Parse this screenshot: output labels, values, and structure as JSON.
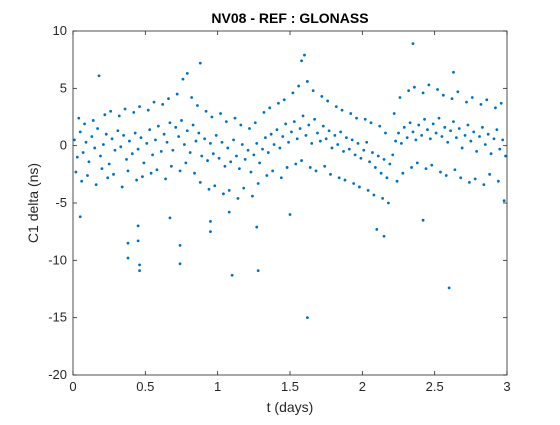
{
  "chart_data": {
    "type": "scatter",
    "title": "NV08 - REF : GLONASS",
    "xlabel": "t (days)",
    "ylabel": "C1 delta (ns)",
    "xlim": [
      0,
      3
    ],
    "ylim": [
      -20,
      10
    ],
    "xticks": [
      0,
      0.5,
      1,
      1.5,
      2,
      2.5,
      3
    ],
    "xtick_labels": [
      "0",
      "0.5",
      "1",
      "1.5",
      "2",
      "2.5",
      "3"
    ],
    "yticks": [
      -20,
      -15,
      -10,
      -5,
      0,
      5,
      10
    ],
    "ytick_labels": [
      "-20",
      "-15",
      "-10",
      "-5",
      "0",
      "5",
      "10"
    ],
    "grid": false,
    "marker_color": "#0072BD",
    "series": [
      {
        "points": [
          [
            0.01,
            0.5
          ],
          [
            0.03,
            -1.0
          ],
          [
            0.05,
            1.2
          ],
          [
            0.07,
            -0.6
          ],
          [
            0.09,
            0.3
          ],
          [
            0.11,
            -1.4
          ],
          [
            0.13,
            0.8
          ],
          [
            0.15,
            -0.2
          ],
          [
            0.17,
            1.5
          ],
          [
            0.19,
            -0.9
          ],
          [
            0.21,
            0.1
          ],
          [
            0.23,
            1.0
          ],
          [
            0.25,
            -1.6
          ],
          [
            0.27,
            0.6
          ],
          [
            0.29,
            -0.4
          ],
          [
            0.31,
            1.3
          ],
          [
            0.33,
            -0.1
          ],
          [
            0.35,
            0.9
          ],
          [
            0.37,
            -1.2
          ],
          [
            0.39,
            0.4
          ],
          [
            0.41,
            -0.7
          ],
          [
            0.43,
            1.1
          ],
          [
            0.45,
            -0.3
          ],
          [
            0.47,
            0.7
          ],
          [
            0.49,
            -1.5
          ],
          [
            0.51,
            0.2
          ],
          [
            0.53,
            1.4
          ],
          [
            0.55,
            -0.8
          ],
          [
            0.57,
            0.5
          ],
          [
            0.59,
            1.7
          ],
          [
            0.61,
            -0.5
          ],
          [
            0.63,
            1.0
          ],
          [
            0.65,
            0.3
          ],
          [
            0.67,
            2.0
          ],
          [
            0.69,
            -0.4
          ],
          [
            0.71,
            1.6
          ],
          [
            0.73,
            0.8
          ],
          [
            0.75,
            2.2
          ],
          [
            0.77,
            0.1
          ],
          [
            0.79,
            1.3
          ],
          [
            0.81,
            -0.6
          ],
          [
            0.83,
            1.8
          ],
          [
            0.85,
            0.4
          ],
          [
            0.87,
            1.1
          ],
          [
            0.89,
            -0.9
          ],
          [
            0.91,
            0.6
          ],
          [
            0.93,
            -1.3
          ],
          [
            0.95,
            0.2
          ],
          [
            0.97,
            -0.7
          ],
          [
            0.99,
            0.9
          ],
          [
            1.01,
            -1.1
          ],
          [
            1.03,
            0.3
          ],
          [
            1.05,
            -1.8
          ],
          [
            1.07,
            -0.2
          ],
          [
            1.09,
            -1.4
          ],
          [
            1.11,
            0.5
          ],
          [
            1.13,
            -0.9
          ],
          [
            1.15,
            -2.0
          ],
          [
            1.17,
            0.1
          ],
          [
            1.19,
            -1.2
          ],
          [
            1.21,
            -0.4
          ],
          [
            1.23,
            -2.3
          ],
          [
            1.25,
            -0.8
          ],
          [
            1.27,
            0.2
          ],
          [
            1.29,
            -1.5
          ],
          [
            1.31,
            -0.3
          ],
          [
            1.33,
            0.7
          ],
          [
            1.35,
            -0.6
          ],
          [
            1.37,
            1.0
          ],
          [
            1.39,
            0.1
          ],
          [
            1.41,
            1.4
          ],
          [
            1.43,
            -0.2
          ],
          [
            1.45,
            0.8
          ],
          [
            1.47,
            1.9
          ],
          [
            1.49,
            0.3
          ],
          [
            1.51,
            1.2
          ],
          [
            1.53,
            2.1
          ],
          [
            1.55,
            0.6
          ],
          [
            1.57,
            1.5
          ],
          [
            1.59,
            2.6
          ],
          [
            1.61,
            0.9
          ],
          [
            1.63,
            1.8
          ],
          [
            1.65,
            0.2
          ],
          [
            1.67,
            2.3
          ],
          [
            1.69,
            1.1
          ],
          [
            1.71,
            0.4
          ],
          [
            1.73,
            1.7
          ],
          [
            1.75,
            0.6
          ],
          [
            1.77,
            1.3
          ],
          [
            1.79,
            -0.2
          ],
          [
            1.81,
            0.9
          ],
          [
            1.83,
            0.1
          ],
          [
            1.85,
            1.2
          ],
          [
            1.87,
            -0.5
          ],
          [
            1.89,
            0.7
          ],
          [
            1.91,
            -0.3
          ],
          [
            1.93,
            0.5
          ],
          [
            1.95,
            -0.8
          ],
          [
            1.97,
            0.2
          ],
          [
            1.99,
            -1.1
          ],
          [
            2.01,
            -0.4
          ],
          [
            2.03,
            0.3
          ],
          [
            2.05,
            -1.4
          ],
          [
            2.07,
            -0.6
          ],
          [
            2.09,
            -1.9
          ],
          [
            2.11,
            -0.9
          ],
          [
            2.13,
            -2.4
          ],
          [
            2.15,
            -1.2
          ],
          [
            2.17,
            -2.8
          ],
          [
            2.19,
            -1.6
          ],
          [
            2.21,
            -0.8
          ],
          [
            2.23,
            0.4
          ],
          [
            2.25,
            1.1
          ],
          [
            2.27,
            0.2
          ],
          [
            2.29,
            1.6
          ],
          [
            2.31,
            0.7
          ],
          [
            2.33,
            2.0
          ],
          [
            2.35,
            1.2
          ],
          [
            2.37,
            0.5
          ],
          [
            2.39,
            1.8
          ],
          [
            2.41,
            0.9
          ],
          [
            2.43,
            2.3
          ],
          [
            2.45,
            1.4
          ],
          [
            2.47,
            0.6
          ],
          [
            2.49,
            1.9
          ],
          [
            2.51,
            1.1
          ],
          [
            2.53,
            2.4
          ],
          [
            2.55,
            0.8
          ],
          [
            2.57,
            1.6
          ],
          [
            2.59,
            0.3
          ],
          [
            2.61,
            1.3
          ],
          [
            2.63,
            2.1
          ],
          [
            2.65,
            0.7
          ],
          [
            2.67,
            1.5
          ],
          [
            2.69,
            -0.2
          ],
          [
            2.71,
            0.9
          ],
          [
            2.73,
            1.8
          ],
          [
            2.75,
            0.4
          ],
          [
            2.77,
            1.2
          ],
          [
            2.79,
            -0.5
          ],
          [
            2.81,
            0.8
          ],
          [
            2.83,
            1.6
          ],
          [
            2.85,
            0.1
          ],
          [
            2.87,
            1.0
          ],
          [
            2.89,
            -0.7
          ],
          [
            2.91,
            0.6
          ],
          [
            2.93,
            1.4
          ],
          [
            2.95,
            -0.3
          ],
          [
            2.97,
            0.5
          ],
          [
            2.99,
            -0.9
          ],
          [
            0.02,
            -2.3
          ],
          [
            0.04,
            2.4
          ],
          [
            0.06,
            -3.1
          ],
          [
            0.08,
            1.9
          ],
          [
            0.1,
            -2.6
          ],
          [
            0.14,
            2.2
          ],
          [
            0.16,
            -3.4
          ],
          [
            0.18,
            6.1
          ],
          [
            0.2,
            -2.0
          ],
          [
            0.22,
            2.7
          ],
          [
            0.24,
            -2.8
          ],
          [
            0.26,
            3.0
          ],
          [
            0.28,
            -2.5
          ],
          [
            0.32,
            2.6
          ],
          [
            0.34,
            -3.6
          ],
          [
            0.36,
            3.2
          ],
          [
            0.38,
            -2.2
          ],
          [
            0.42,
            2.9
          ],
          [
            0.44,
            -3.0
          ],
          [
            0.46,
            3.4
          ],
          [
            0.48,
            -2.7
          ],
          [
            0.52,
            3.1
          ],
          [
            0.54,
            -2.4
          ],
          [
            0.56,
            3.8
          ],
          [
            0.58,
            -2.1
          ],
          [
            0.62,
            3.6
          ],
          [
            0.64,
            -2.9
          ],
          [
            0.66,
            4.1
          ],
          [
            0.68,
            -1.8
          ],
          [
            0.72,
            4.5
          ],
          [
            0.74,
            -2.2
          ],
          [
            0.76,
            5.8
          ],
          [
            0.78,
            -1.5
          ],
          [
            0.82,
            4.2
          ],
          [
            0.84,
            -2.4
          ],
          [
            0.86,
            3.5
          ],
          [
            0.88,
            -3.2
          ],
          [
            0.92,
            3.0
          ],
          [
            0.94,
            -3.8
          ],
          [
            0.96,
            2.5
          ],
          [
            0.98,
            -3.5
          ],
          [
            1.02,
            2.8
          ],
          [
            1.04,
            -4.2
          ],
          [
            1.06,
            2.1
          ],
          [
            1.08,
            -3.9
          ],
          [
            1.12,
            2.4
          ],
          [
            1.14,
            -4.6
          ],
          [
            1.16,
            1.8
          ],
          [
            1.18,
            -3.7
          ],
          [
            1.22,
            1.5
          ],
          [
            1.24,
            -4.4
          ],
          [
            1.26,
            2.0
          ],
          [
            1.28,
            -3.3
          ],
          [
            1.32,
            2.9
          ],
          [
            1.34,
            -2.6
          ],
          [
            1.36,
            3.3
          ],
          [
            1.38,
            -2.2
          ],
          [
            1.42,
            3.7
          ],
          [
            1.44,
            -2.8
          ],
          [
            1.46,
            4.0
          ],
          [
            1.48,
            -1.9
          ],
          [
            1.52,
            4.6
          ],
          [
            1.54,
            -1.6
          ],
          [
            1.56,
            5.2
          ],
          [
            1.58,
            -1.3
          ],
          [
            1.62,
            5.6
          ],
          [
            1.64,
            -1.9
          ],
          [
            1.66,
            4.8
          ],
          [
            1.68,
            -2.2
          ],
          [
            1.72,
            4.3
          ],
          [
            1.74,
            -1.8
          ],
          [
            1.76,
            3.9
          ],
          [
            1.78,
            -2.5
          ],
          [
            1.82,
            3.4
          ],
          [
            1.84,
            -2.8
          ],
          [
            1.86,
            3.1
          ],
          [
            1.88,
            -3.0
          ],
          [
            1.92,
            2.8
          ],
          [
            1.94,
            -3.3
          ],
          [
            1.96,
            2.4
          ],
          [
            1.98,
            -3.6
          ],
          [
            2.02,
            2.3
          ],
          [
            2.04,
            -3.9
          ],
          [
            2.06,
            2.0
          ],
          [
            2.08,
            -4.3
          ],
          [
            2.12,
            1.7
          ],
          [
            2.14,
            -4.6
          ],
          [
            2.16,
            1.1
          ],
          [
            2.18,
            -5.0
          ],
          [
            2.22,
            2.8
          ],
          [
            2.24,
            -3.1
          ],
          [
            2.26,
            4.2
          ],
          [
            2.28,
            -2.4
          ],
          [
            2.32,
            4.8
          ],
          [
            2.34,
            -1.9
          ],
          [
            2.36,
            5.1
          ],
          [
            2.38,
            -1.5
          ],
          [
            2.42,
            4.6
          ],
          [
            2.44,
            -2.0
          ],
          [
            2.46,
            5.3
          ],
          [
            2.48,
            -1.7
          ],
          [
            2.52,
            4.9
          ],
          [
            2.54,
            -2.3
          ],
          [
            2.56,
            4.4
          ],
          [
            2.58,
            -2.6
          ],
          [
            2.62,
            4.1
          ],
          [
            2.64,
            -2.1
          ],
          [
            2.66,
            4.7
          ],
          [
            2.68,
            -2.8
          ],
          [
            2.72,
            3.8
          ],
          [
            2.74,
            -3.2
          ],
          [
            2.76,
            4.2
          ],
          [
            2.78,
            -2.9
          ],
          [
            2.82,
            3.6
          ],
          [
            2.84,
            -3.4
          ],
          [
            2.86,
            4.0
          ],
          [
            2.88,
            -2.5
          ],
          [
            2.92,
            3.3
          ],
          [
            2.94,
            -3.1
          ],
          [
            2.96,
            3.7
          ],
          [
            2.98,
            -4.8
          ],
          [
            0.38,
            -8.5
          ],
          [
            0.38,
            -9.8
          ],
          [
            0.45,
            -8.3
          ],
          [
            0.46,
            -10.4
          ],
          [
            0.46,
            -10.9
          ],
          [
            0.74,
            -8.7
          ],
          [
            0.74,
            -10.3
          ],
          [
            0.95,
            -6.6
          ],
          [
            0.95,
            -7.5
          ],
          [
            1.1,
            -11.3
          ],
          [
            1.28,
            -10.9
          ],
          [
            1.62,
            -15.0
          ],
          [
            2.6,
            -12.4
          ],
          [
            1.6,
            7.9
          ],
          [
            1.58,
            7.4
          ],
          [
            2.35,
            8.9
          ],
          [
            0.88,
            7.2
          ],
          [
            0.79,
            6.3
          ],
          [
            2.63,
            6.4
          ],
          [
            2.42,
            -6.5
          ],
          [
            0.05,
            -6.2
          ],
          [
            0.45,
            -7.0
          ],
          [
            1.27,
            -7.1
          ],
          [
            2.15,
            -7.9
          ],
          [
            2.1,
            -7.3
          ],
          [
            1.5,
            -6.0
          ],
          [
            1.08,
            -5.8
          ],
          [
            0.67,
            -6.3
          ]
        ]
      }
    ]
  }
}
